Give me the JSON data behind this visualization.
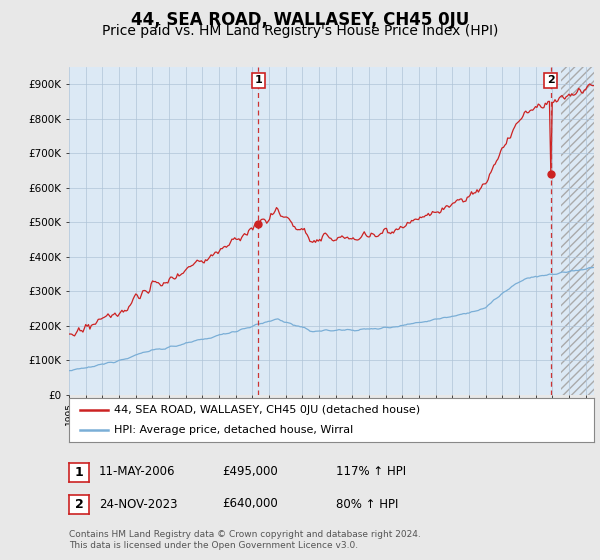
{
  "title": "44, SEA ROAD, WALLASEY, CH45 0JU",
  "subtitle": "Price paid vs. HM Land Registry's House Price Index (HPI)",
  "ylim": [
    0,
    950000
  ],
  "yticks": [
    0,
    100000,
    200000,
    300000,
    400000,
    500000,
    600000,
    700000,
    800000,
    900000
  ],
  "ytick_labels": [
    "£0",
    "£100K",
    "£200K",
    "£300K",
    "£400K",
    "£500K",
    "£600K",
    "£700K",
    "£800K",
    "£900K"
  ],
  "background_color": "#e8e8e8",
  "plot_bg_color": "#dce9f5",
  "grid_color": "#b0c4d8",
  "hpi_color": "#7aaed6",
  "price_color": "#cc2222",
  "dashed_line_color": "#cc3333",
  "annotation_box_color": "#cc2222",
  "title_fontsize": 12,
  "subtitle_fontsize": 10,
  "sale1_date_num": 2006.36,
  "sale1_price": 495000,
  "sale1_label": "1",
  "sale2_date_num": 2023.9,
  "sale2_price": 640000,
  "sale2_label": "2",
  "legend_line1": "44, SEA ROAD, WALLASEY, CH45 0JU (detached house)",
  "legend_line2": "HPI: Average price, detached house, Wirral",
  "sale1_row_label": "1",
  "sale1_row_date": "11-MAY-2006",
  "sale1_row_price": "£495,000",
  "sale1_row_hpi": "117% ↑ HPI",
  "sale2_row_label": "2",
  "sale2_row_date": "24-NOV-2023",
  "sale2_row_price": "£640,000",
  "sale2_row_hpi": "80% ↑ HPI",
  "footer1": "Contains HM Land Registry data © Crown copyright and database right 2024.",
  "footer2": "This data is licensed under the Open Government Licence v3.0.",
  "xmin": 1995,
  "xmax": 2026.5,
  "hatch_start": 2024.5
}
